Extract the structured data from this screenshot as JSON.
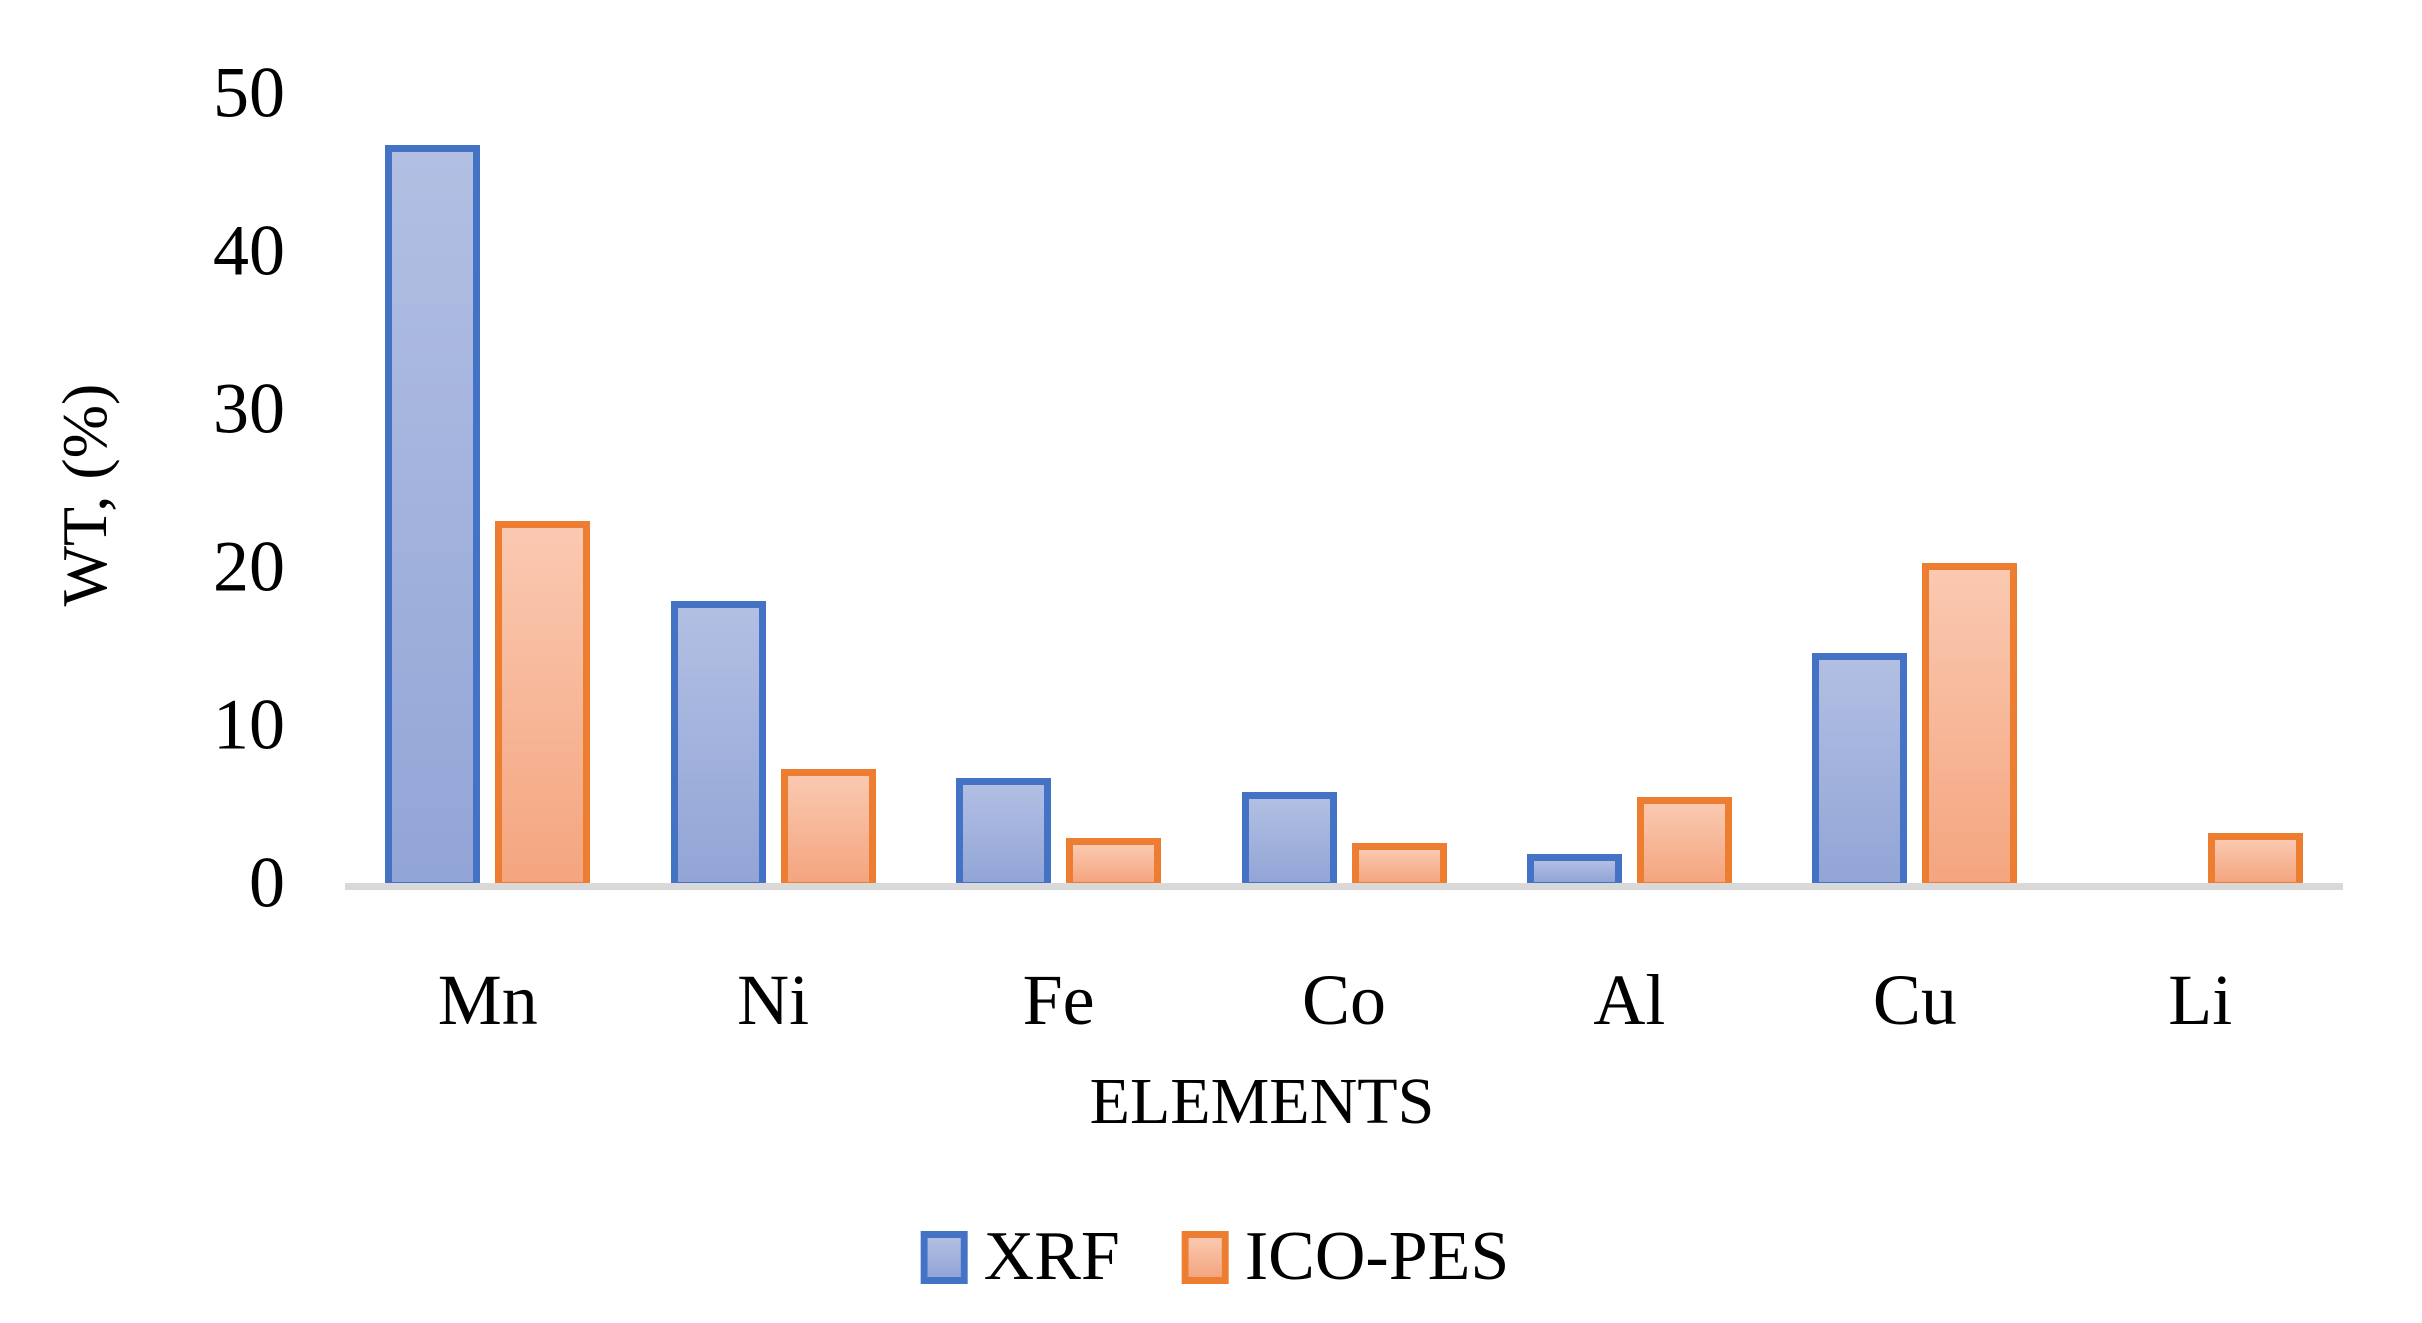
{
  "chart_data": {
    "type": "bar",
    "title": "",
    "xlabel": "ELEMENTS",
    "ylabel": "WT, (%)",
    "categories": [
      "Mn",
      "Ni",
      "Fe",
      "Co",
      "Al",
      "Cu",
      "Li"
    ],
    "series": [
      {
        "name": "XRF",
        "values": [
          46.8,
          17.9,
          6.7,
          5.8,
          1.9,
          14.6,
          0
        ],
        "border_color": "#4472c4",
        "fill_top": "#b2bfe3",
        "fill_bottom": "#92a5d6"
      },
      {
        "name": "ICO-PES",
        "values": [
          23.0,
          7.3,
          2.9,
          2.6,
          5.5,
          20.3,
          3.2
        ],
        "border_color": "#ed7d31",
        "fill_top": "#fac9b1",
        "fill_bottom": "#f4a57f"
      }
    ],
    "ylim": [
      0,
      50
    ],
    "yticks": [
      0,
      10,
      20,
      30,
      40,
      50
    ],
    "grid": false,
    "legend_position": "bottom",
    "axis_line_color": "#d9d9d9"
  }
}
